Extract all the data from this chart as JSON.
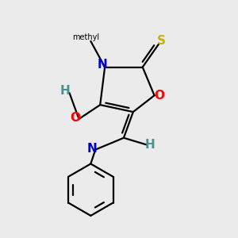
{
  "bg_color": "#ebebeb",
  "bond_color": "#000000",
  "figsize": [
    3.0,
    3.0
  ],
  "dpi": 100,
  "colors": {
    "S": "#c8b400",
    "O": "#ff0000",
    "N": "#0000cc",
    "H": "#4a9090",
    "C": "#000000"
  }
}
